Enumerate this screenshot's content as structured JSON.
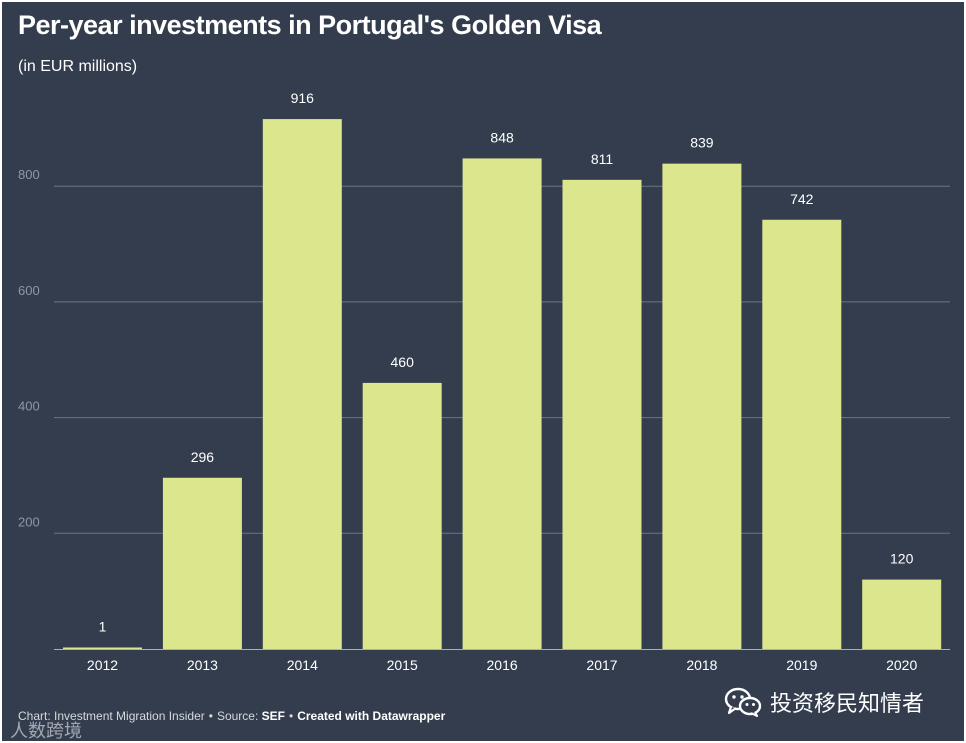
{
  "chart_data": {
    "type": "bar",
    "title": "Per-year investments in Portugal's Golden Visa",
    "subtitle": "(in EUR millions)",
    "categories": [
      "2012",
      "2013",
      "2014",
      "2015",
      "2016",
      "2017",
      "2018",
      "2019",
      "2020"
    ],
    "values": [
      1,
      296,
      916,
      460,
      848,
      811,
      839,
      742,
      120
    ],
    "data_labels": [
      "1",
      "296",
      "916",
      "460",
      "848",
      "811",
      "839",
      "742",
      "120"
    ],
    "yticks": [
      200,
      400,
      600,
      800
    ],
    "ytick_labels": [
      "200",
      "400",
      "600",
      "800"
    ],
    "ylim": [
      0,
      1000
    ],
    "grid": true,
    "xlabel": "",
    "ylabel": "",
    "colors": {
      "background": "#333d4e",
      "bar": "#dce68c",
      "grid": "#6b7483",
      "tick_text": "#8f97a4",
      "label_text": "#ffffff"
    }
  },
  "footer": {
    "prefix": "Chart: Investment Migration Insider",
    "source_label": "Source:",
    "source": "SEF",
    "credit": "Created with Datawrapper"
  },
  "watermark": {
    "text": "投资移民知情者",
    "icon": "wechat-icon"
  },
  "corner_mark": {
    "text": "人数跨境"
  }
}
